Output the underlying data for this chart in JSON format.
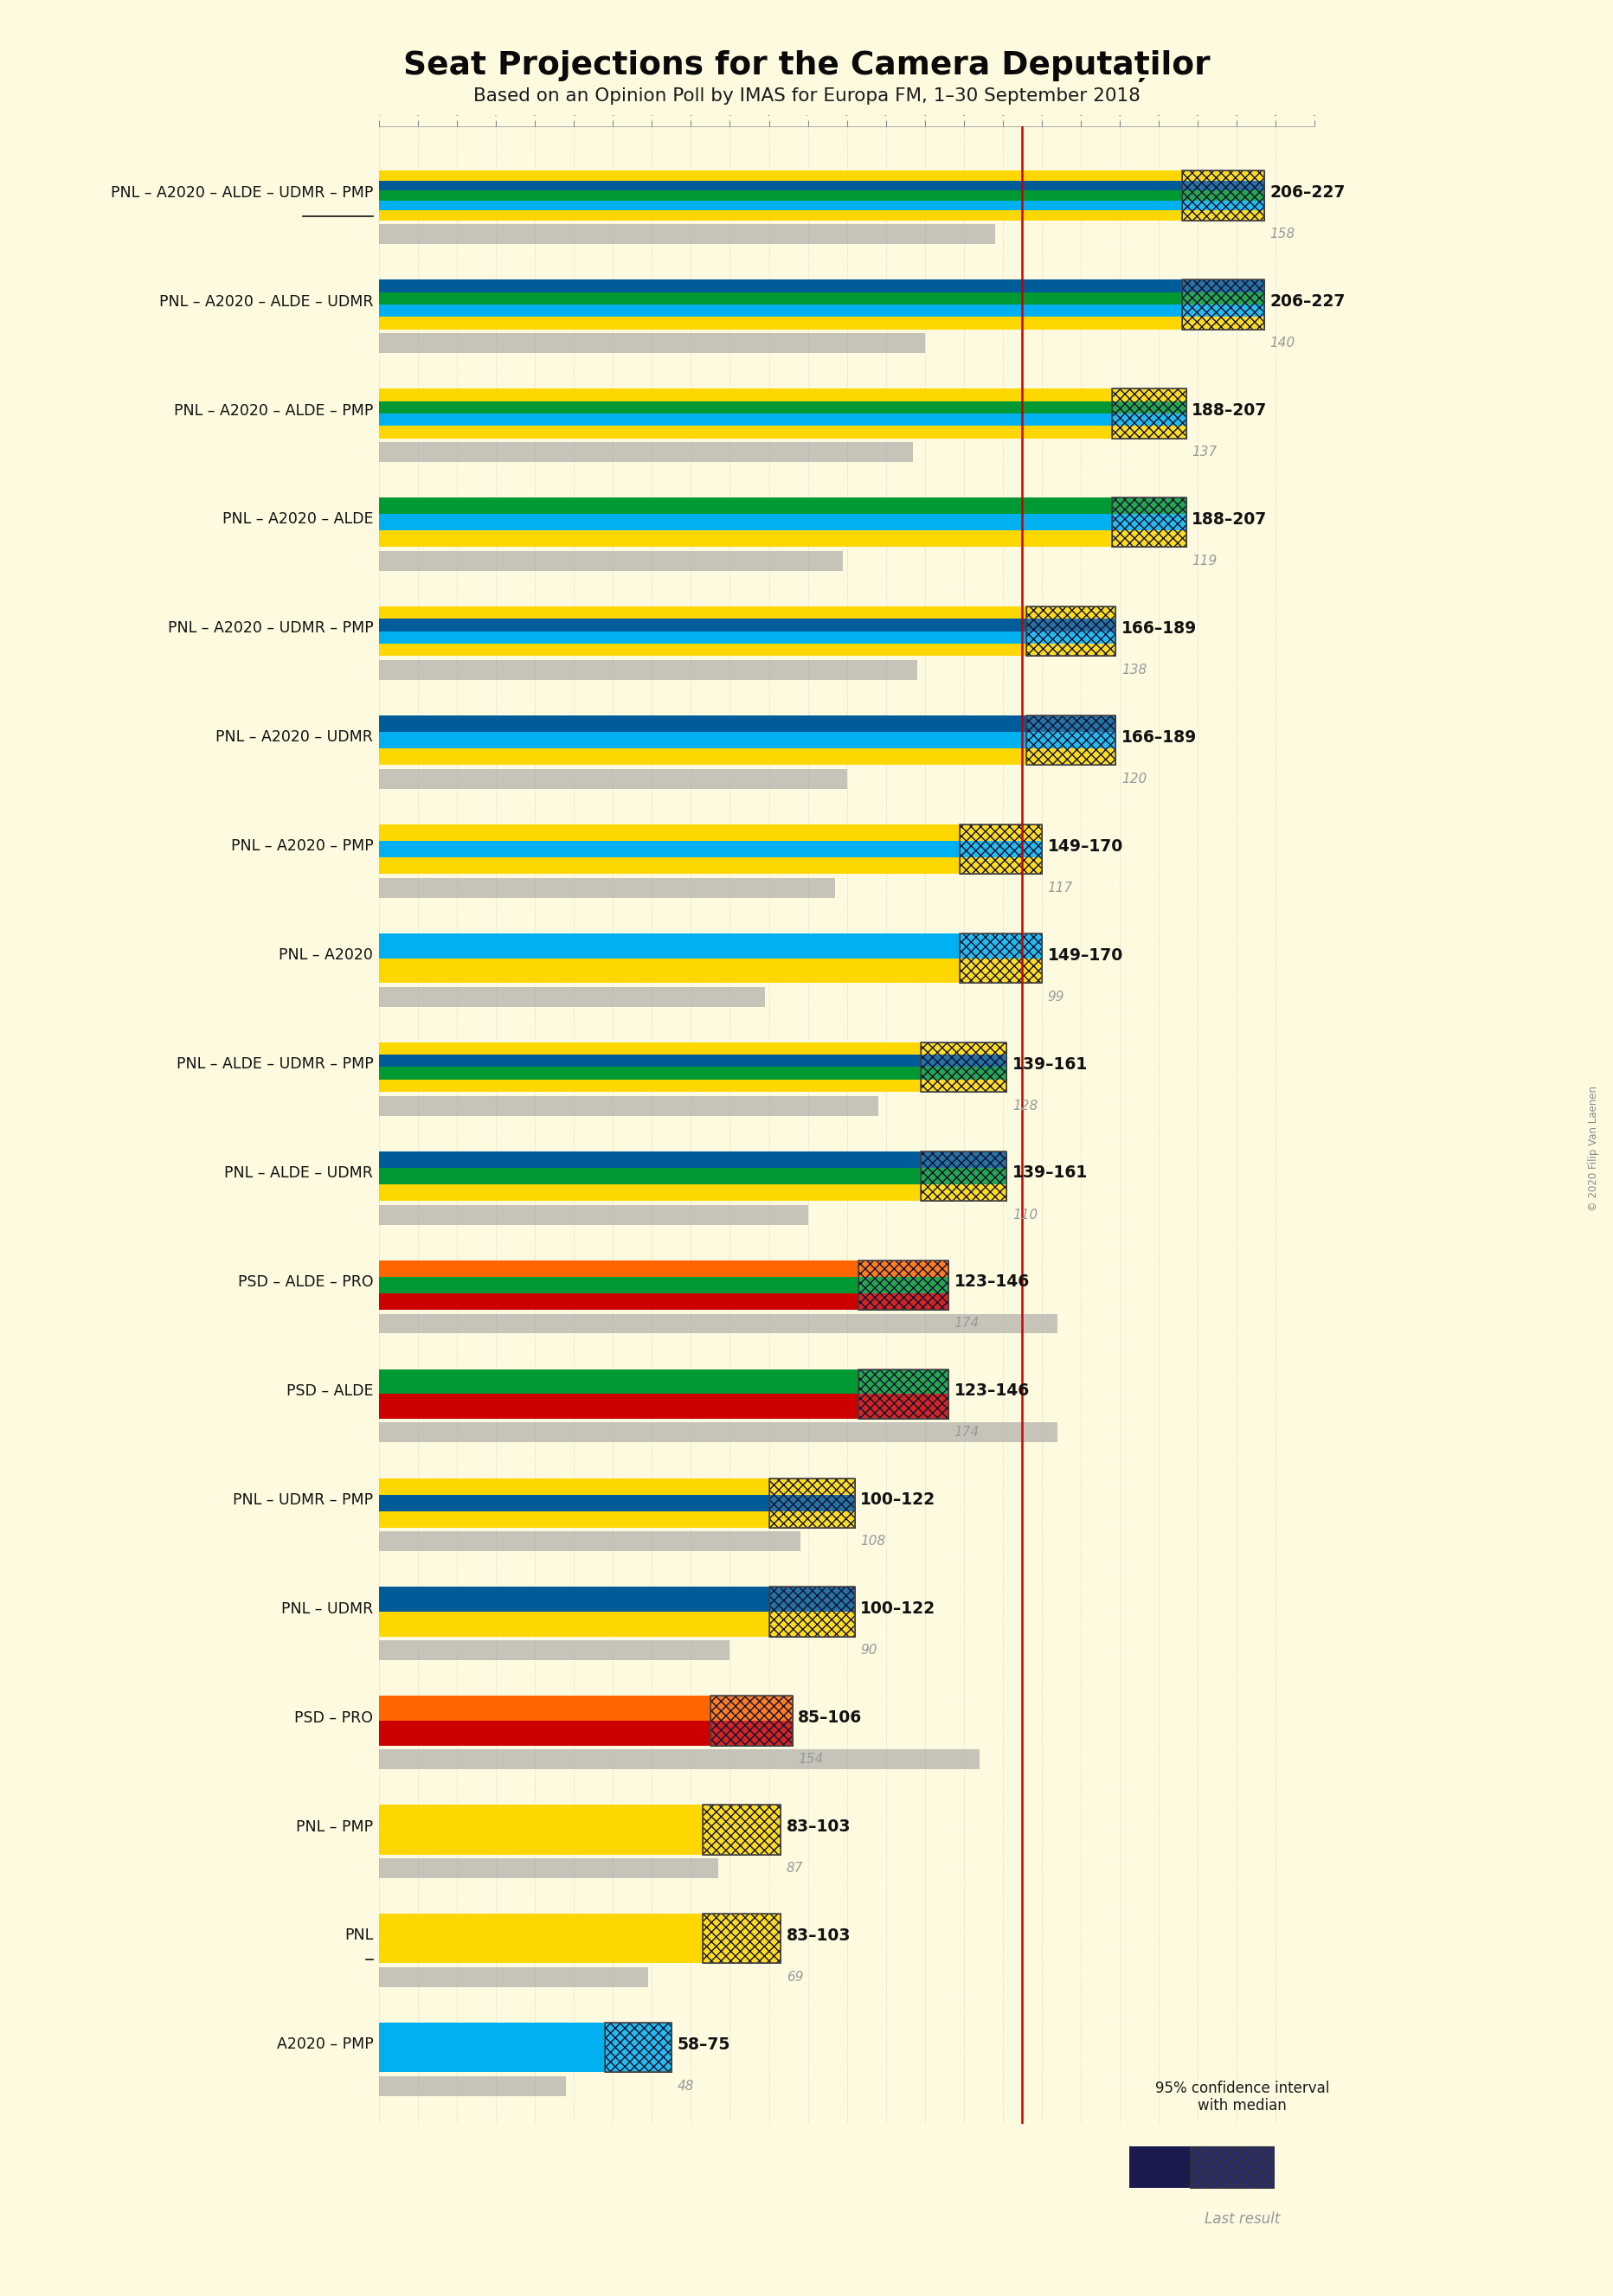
{
  "title": "Seat Projections for the Camera Deputaților",
  "subtitle": "Based on an Opinion Poll by IMAS for Europa FM, 1–30 September 2018",
  "copyright": "© 2020 Filip Van Laenen",
  "background_color": "#FEFAE0",
  "majority_line": 165,
  "xlim_max": 240,
  "coalitions": [
    {
      "name": "PNL – A2020 – ALDE – UDMR – PMP",
      "underline": true,
      "range_low": 206,
      "range_high": 227,
      "last_result": 158,
      "colors": [
        "#FFD700",
        "#00B0F0",
        "#009933",
        "#005B99",
        "#FFD700"
      ]
    },
    {
      "name": "PNL – A2020 – ALDE – UDMR",
      "underline": false,
      "range_low": 206,
      "range_high": 227,
      "last_result": 140,
      "colors": [
        "#FFD700",
        "#00B0F0",
        "#009933",
        "#005B99"
      ]
    },
    {
      "name": "PNL – A2020 – ALDE – PMP",
      "underline": false,
      "range_low": 188,
      "range_high": 207,
      "last_result": 137,
      "colors": [
        "#FFD700",
        "#00B0F0",
        "#009933",
        "#FFD700"
      ]
    },
    {
      "name": "PNL – A2020 – ALDE",
      "underline": false,
      "range_low": 188,
      "range_high": 207,
      "last_result": 119,
      "colors": [
        "#FFD700",
        "#00B0F0",
        "#009933"
      ]
    },
    {
      "name": "PNL – A2020 – UDMR – PMP",
      "underline": false,
      "range_low": 166,
      "range_high": 189,
      "last_result": 138,
      "colors": [
        "#FFD700",
        "#00B0F0",
        "#005B99",
        "#FFD700"
      ]
    },
    {
      "name": "PNL – A2020 – UDMR",
      "underline": false,
      "range_low": 166,
      "range_high": 189,
      "last_result": 120,
      "colors": [
        "#FFD700",
        "#00B0F0",
        "#005B99"
      ]
    },
    {
      "name": "PNL – A2020 – PMP",
      "underline": false,
      "range_low": 149,
      "range_high": 170,
      "last_result": 117,
      "colors": [
        "#FFD700",
        "#00B0F0",
        "#FFD700"
      ]
    },
    {
      "name": "PNL – A2020",
      "underline": false,
      "range_low": 149,
      "range_high": 170,
      "last_result": 99,
      "colors": [
        "#FFD700",
        "#00B0F0"
      ]
    },
    {
      "name": "PNL – ALDE – UDMR – PMP",
      "underline": false,
      "range_low": 139,
      "range_high": 161,
      "last_result": 128,
      "colors": [
        "#FFD700",
        "#009933",
        "#005B99",
        "#FFD700"
      ]
    },
    {
      "name": "PNL – ALDE – UDMR",
      "underline": false,
      "range_low": 139,
      "range_high": 161,
      "last_result": 110,
      "colors": [
        "#FFD700",
        "#009933",
        "#005B99"
      ]
    },
    {
      "name": "PSD – ALDE – PRO",
      "underline": false,
      "range_low": 123,
      "range_high": 146,
      "last_result": 174,
      "colors": [
        "#CC0000",
        "#009933",
        "#FF6600"
      ]
    },
    {
      "name": "PSD – ALDE",
      "underline": false,
      "range_low": 123,
      "range_high": 146,
      "last_result": 174,
      "colors": [
        "#CC0000",
        "#009933"
      ]
    },
    {
      "name": "PNL – UDMR – PMP",
      "underline": false,
      "range_low": 100,
      "range_high": 122,
      "last_result": 108,
      "colors": [
        "#FFD700",
        "#005B99",
        "#FFD700"
      ]
    },
    {
      "name": "PNL – UDMR",
      "underline": false,
      "range_low": 100,
      "range_high": 122,
      "last_result": 90,
      "colors": [
        "#FFD700",
        "#005B99"
      ]
    },
    {
      "name": "PSD – PRO",
      "underline": false,
      "range_low": 85,
      "range_high": 106,
      "last_result": 154,
      "colors": [
        "#CC0000",
        "#FF6600"
      ]
    },
    {
      "name": "PNL – PMP",
      "underline": false,
      "range_low": 83,
      "range_high": 103,
      "last_result": 87,
      "colors": [
        "#FFD700",
        "#FFD700"
      ]
    },
    {
      "name": "PNL",
      "underline": true,
      "range_low": 83,
      "range_high": 103,
      "last_result": 69,
      "colors": [
        "#FFD700"
      ]
    },
    {
      "name": "A2020 – PMP",
      "underline": false,
      "range_low": 58,
      "range_high": 75,
      "last_result": 48,
      "colors": [
        "#00B0F0",
        "#00B0F0"
      ]
    }
  ],
  "majority_color": "#CC0000",
  "last_result_color": "#999999",
  "range_text_color": "#111111",
  "last_text_color": "#999999"
}
